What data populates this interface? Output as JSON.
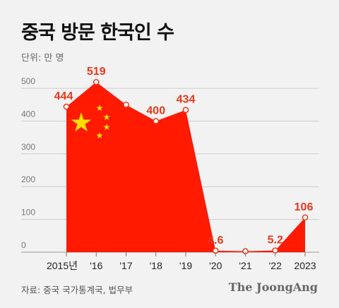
{
  "header": {
    "title": "중국 방문 한국인 수",
    "unit": "단위: 만 명"
  },
  "footer": {
    "source": "자료: 중국 국가통계국, 법무부",
    "brand": "The JoongAng"
  },
  "colors": {
    "area": "#ff1a00",
    "label": "#e6391e",
    "star": "#ffde00",
    "grid": "#cccccc",
    "background": "#f2f2f2"
  },
  "icons": {
    "flag_stars": "china-flag-stars"
  },
  "chart_data": {
    "type": "area",
    "categories": [
      "2015년",
      "'16",
      "'17",
      "'18",
      "'19",
      "'20",
      "'21",
      "'22",
      "2023"
    ],
    "values": [
      444,
      519,
      450,
      400,
      434,
      4.6,
      3,
      5.2,
      106
    ],
    "data_labels": [
      "444",
      "519",
      "",
      "400",
      "434",
      "4.6",
      "",
      "5.2",
      "106"
    ],
    "yticks": [
      "0",
      "100",
      "200",
      "300",
      "400",
      "500"
    ],
    "ylim": [
      0,
      560
    ],
    "grid": true,
    "legend": "none"
  }
}
